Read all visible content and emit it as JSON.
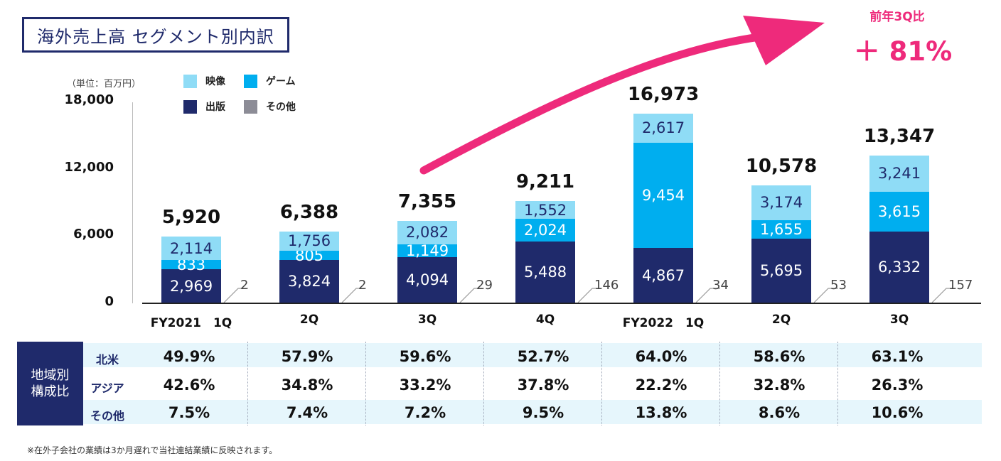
{
  "header": {
    "title": "海外売上高 セグメント別内訳",
    "unit": "（単位：百万円）"
  },
  "legend": [
    {
      "label": "映像",
      "color": "#8fdcf6"
    },
    {
      "label": "ゲーム",
      "color": "#00aeef"
    },
    {
      "label": "出版",
      "color": "#1f2a6b"
    },
    {
      "label": "その他",
      "color": "#8c8c96"
    }
  ],
  "yoy": {
    "label": "前年3Q比",
    "value": "＋ 81%"
  },
  "chart_data": {
    "type": "bar",
    "stacked": true,
    "categories": [
      "FY2021　1Q",
      "2Q",
      "3Q",
      "4Q",
      "FY2022　1Q",
      "2Q",
      "3Q"
    ],
    "yticks": [
      "0",
      "6,000",
      "12,000",
      "18,000"
    ],
    "ylim": [
      0,
      18000
    ],
    "series": [
      {
        "name": "出版",
        "values": [
          2969,
          3824,
          4094,
          5488,
          4867,
          5695,
          6332
        ],
        "labels": [
          "2,969",
          "3,824",
          "4,094",
          "5,488",
          "4,867",
          "5,695",
          "6,332"
        ],
        "color": "#1f2a6b"
      },
      {
        "name": "ゲーム",
        "values": [
          833,
          805,
          1149,
          2024,
          9454,
          1655,
          3615
        ],
        "labels": [
          "833",
          "805",
          "1,149",
          "2,024",
          "9,454",
          "1,655",
          "3,615"
        ],
        "color": "#00aeef"
      },
      {
        "name": "映像",
        "values": [
          2114,
          1756,
          2082,
          1552,
          2617,
          3174,
          3241
        ],
        "labels": [
          "2,114",
          "1,756",
          "2,082",
          "1,552",
          "2,617",
          "3,174",
          "3,241"
        ],
        "color": "#8fdcf6"
      },
      {
        "name": "その他",
        "values": [
          2,
          2,
          29,
          146,
          34,
          53,
          157
        ],
        "labels": [
          "2",
          "2",
          "29",
          "146",
          "34",
          "53",
          "157"
        ],
        "color": "#8c8c96"
      }
    ],
    "totals": [
      "5,920",
      "6,388",
      "7,355",
      "9,211",
      "16,973",
      "10,578",
      "13,347"
    ]
  },
  "region_table": {
    "header": "地域別\n構成比",
    "rows": [
      {
        "label": "北米",
        "values": [
          "49.9%",
          "57.9%",
          "59.6%",
          "52.7%",
          "64.0%",
          "58.6%",
          "63.1%"
        ]
      },
      {
        "label": "アジア",
        "values": [
          "42.6%",
          "34.8%",
          "33.2%",
          "37.8%",
          "22.2%",
          "32.8%",
          "26.3%"
        ]
      },
      {
        "label": "その他",
        "values": [
          "7.5%",
          "7.4%",
          "7.2%",
          "9.5%",
          "13.8%",
          "8.6%",
          "10.6%"
        ]
      }
    ]
  },
  "footnote": "※在外子会社の業績は3か月遅れで当社連結業績に反映されます。"
}
